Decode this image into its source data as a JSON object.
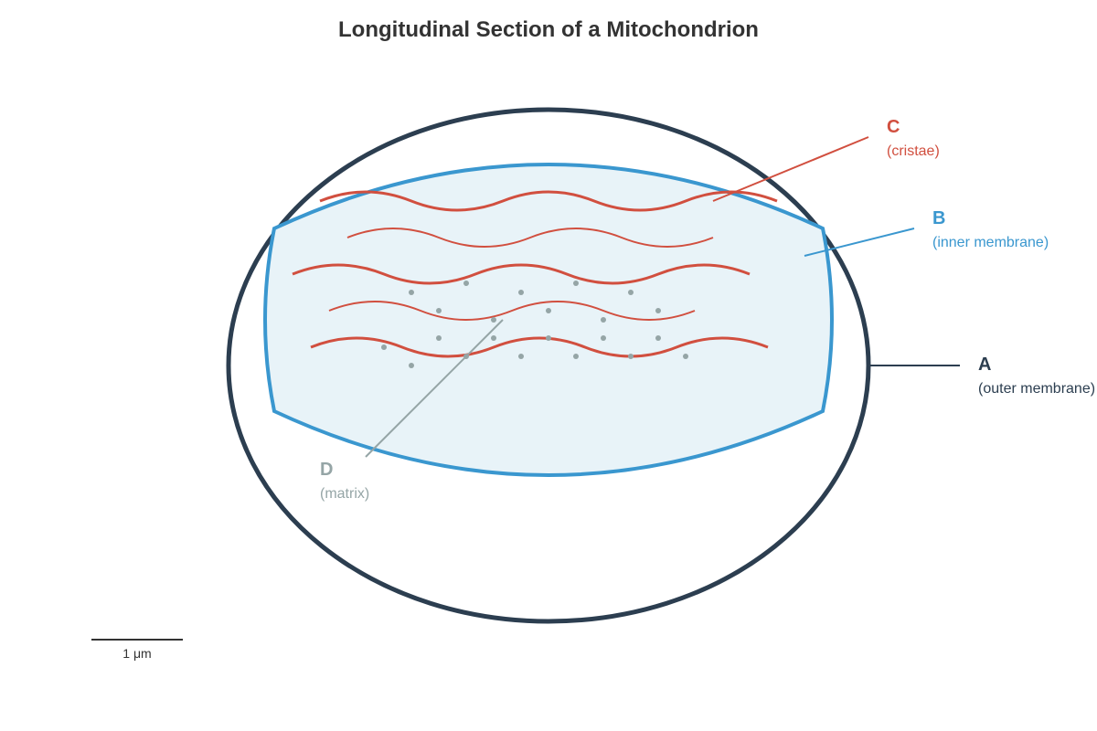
{
  "title": "Longitudinal Section of a Mitochondrion",
  "labels": [
    {
      "letter": "C",
      "text": "(cristae)"
    },
    {
      "letter": "B",
      "text": "(inner membrane)"
    },
    {
      "letter": "A",
      "text": "(outer membrane)"
    },
    {
      "letter": "D",
      "text": "(matrix)"
    }
  ],
  "scale_bar": {
    "label": "1 μm"
  }
}
